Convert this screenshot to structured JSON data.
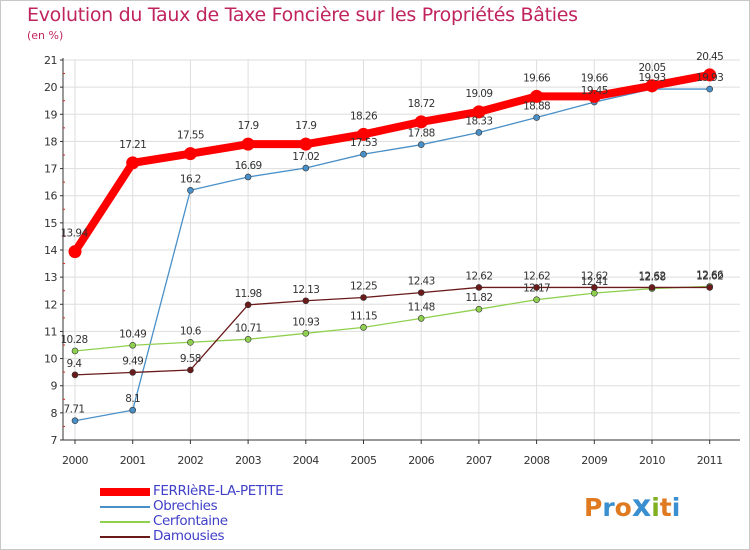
{
  "title": "Evolution du Taux de Taxe Foncière sur les Propriétés Bâties",
  "unit": "(en %)",
  "logo": {
    "text": "Proxiti",
    "colors": [
      "#e07a20",
      "#3a8fd0",
      "#e07a20",
      "#3a8fd0",
      "#80b020",
      "#e07a20",
      "#3a8fd0"
    ]
  },
  "chart_data": {
    "type": "line",
    "title": "Evolution du Taux de Taxe Foncière sur les Propriétés Bâties",
    "ylabel": "(en %)",
    "xlabel": "",
    "ylim": [
      7,
      21
    ],
    "yticks": [
      7,
      8,
      9,
      10,
      11,
      12,
      13,
      14,
      15,
      16,
      17,
      18,
      19,
      20,
      21
    ],
    "categories": [
      "2000",
      "2001",
      "2002",
      "2003",
      "2004",
      "2005",
      "2006",
      "2007",
      "2008",
      "2009",
      "2010",
      "2011"
    ],
    "legend_position": "bottom-left",
    "series": [
      {
        "name": "FERRIèRE-LA-PETITE",
        "color": "#ff0000",
        "values": [
          13.94,
          17.21,
          17.55,
          17.9,
          17.9,
          18.26,
          18.72,
          19.09,
          19.66,
          19.66,
          20.05,
          20.45
        ],
        "labels": [
          "13.94",
          "17.21",
          "17.55",
          "17.9",
          "17.9",
          "18.26",
          "18.72",
          "19.09",
          "19.66",
          "19.66",
          "20.05",
          "20.45"
        ]
      },
      {
        "name": "Obrechies",
        "color": "#4a90c8",
        "values": [
          7.71,
          8.1,
          16.2,
          16.69,
          17.02,
          17.53,
          17.88,
          18.33,
          18.88,
          19.45,
          19.93,
          19.93
        ],
        "labels": [
          "7.71",
          "8.1",
          "16.2",
          "16.69",
          "17.02",
          "17.53",
          "17.88",
          "18.33",
          "18.88",
          "19.45",
          "19.93",
          "19.93"
        ]
      },
      {
        "name": "Cerfontaine",
        "color": "#90d050",
        "values": [
          10.28,
          10.49,
          10.6,
          10.71,
          10.93,
          11.15,
          11.48,
          11.82,
          12.17,
          12.41,
          12.58,
          12.66
        ],
        "labels": [
          "10.28",
          "10.49",
          "10.6",
          "10.71",
          "10.93",
          "11.15",
          "11.48",
          "11.82",
          "12.17",
          "12.41",
          "12.58",
          "12.66"
        ]
      },
      {
        "name": "Damousies",
        "color": "#6b1a1a",
        "values": [
          9.4,
          9.49,
          9.58,
          11.98,
          12.13,
          12.25,
          12.43,
          12.62,
          12.62,
          12.62,
          12.62,
          12.62
        ],
        "labels": [
          "9.4",
          "9.49",
          "9.58",
          "11.98",
          "12.13",
          "12.25",
          "12.43",
          "12.62",
          "12.62",
          "12.62",
          "12.62",
          "12.62"
        ]
      }
    ]
  }
}
